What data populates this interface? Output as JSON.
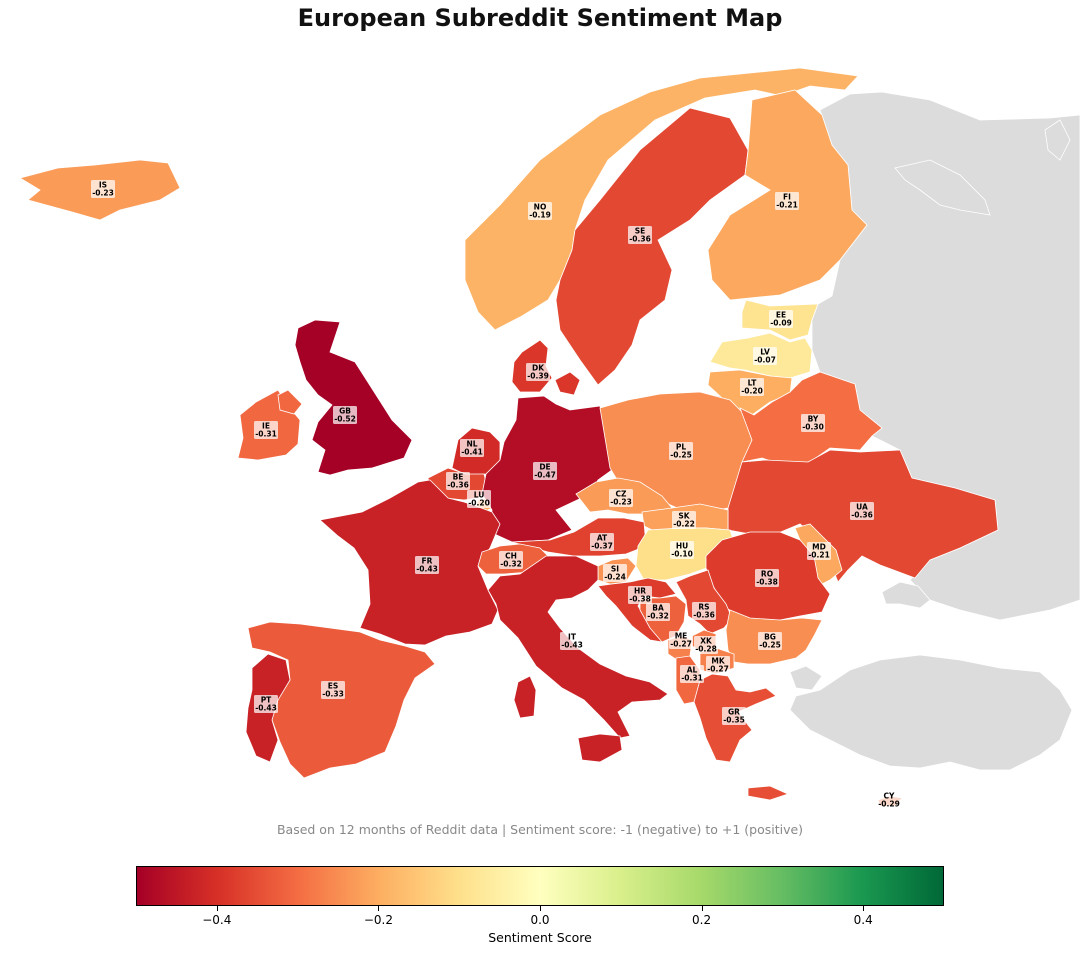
{
  "title": "European Subreddit Sentiment Map",
  "caption": "Based on 12 months of Reddit data | Sentiment score: -1 (negative) to +1 (positive)",
  "colorbar": {
    "label": "Sentiment Score",
    "range": [
      -0.5,
      0.5
    ],
    "colormap": "RdYlGn",
    "ticks": [
      {
        "value": -0.4,
        "label": "−0.4"
      },
      {
        "value": -0.2,
        "label": "−0.2"
      },
      {
        "value": 0.0,
        "label": "0.0"
      },
      {
        "value": 0.2,
        "label": "0.2"
      },
      {
        "value": 0.4,
        "label": "0.4"
      }
    ]
  },
  "colors": {
    "no_data": "#dcdcdc",
    "border": "#ffffff"
  },
  "countries": [
    {
      "code": "IS",
      "label": "-0.23",
      "value": -0.23
    },
    {
      "code": "NO",
      "label": "-0.19",
      "value": -0.19
    },
    {
      "code": "SE",
      "label": "-0.36",
      "value": -0.36
    },
    {
      "code": "FI",
      "label": "-0.21",
      "value": -0.21
    },
    {
      "code": "EE",
      "label": "-0.09",
      "value": -0.09
    },
    {
      "code": "LV",
      "label": "-0.07",
      "value": -0.07
    },
    {
      "code": "LT",
      "label": "-0.20",
      "value": -0.2
    },
    {
      "code": "DK",
      "label": "-0.39",
      "value": -0.39
    },
    {
      "code": "GB",
      "label": "-0.52",
      "value": -0.52
    },
    {
      "code": "IE",
      "label": "-0.31",
      "value": -0.31
    },
    {
      "code": "NL",
      "label": "-0.41",
      "value": -0.41
    },
    {
      "code": "BE",
      "label": "-0.36",
      "value": -0.36
    },
    {
      "code": "LU",
      "label": "-0.20",
      "value": -0.2
    },
    {
      "code": "DE",
      "label": "-0.47",
      "value": -0.47
    },
    {
      "code": "PL",
      "label": "-0.25",
      "value": -0.25
    },
    {
      "code": "BY",
      "label": "-0.30",
      "value": -0.3
    },
    {
      "code": "UA",
      "label": "-0.36",
      "value": -0.36
    },
    {
      "code": "CZ",
      "label": "-0.23",
      "value": -0.23
    },
    {
      "code": "SK",
      "label": "-0.22",
      "value": -0.22
    },
    {
      "code": "AT",
      "label": "-0.37",
      "value": -0.37
    },
    {
      "code": "HU",
      "label": "-0.10",
      "value": -0.1
    },
    {
      "code": "MD",
      "label": "-0.21",
      "value": -0.21
    },
    {
      "code": "RO",
      "label": "-0.38",
      "value": -0.38
    },
    {
      "code": "FR",
      "label": "-0.43",
      "value": -0.43
    },
    {
      "code": "CH",
      "label": "-0.32",
      "value": -0.32
    },
    {
      "code": "SI",
      "label": "-0.24",
      "value": -0.24
    },
    {
      "code": "HR",
      "label": "-0.38",
      "value": -0.38
    },
    {
      "code": "BA",
      "label": "-0.32",
      "value": -0.32
    },
    {
      "code": "RS",
      "label": "-0.36",
      "value": -0.36
    },
    {
      "code": "IT",
      "label": "-0.43",
      "value": -0.43
    },
    {
      "code": "ME",
      "label": "-0.27",
      "value": -0.27
    },
    {
      "code": "XK",
      "label": "-0.28",
      "value": -0.28
    },
    {
      "code": "BG",
      "label": "-0.25",
      "value": -0.25
    },
    {
      "code": "MK",
      "label": "-0.27",
      "value": -0.27
    },
    {
      "code": "AL",
      "label": "-0.31",
      "value": -0.31
    },
    {
      "code": "ES",
      "label": "-0.33",
      "value": -0.33
    },
    {
      "code": "PT",
      "label": "-0.43",
      "value": -0.43
    },
    {
      "code": "GR",
      "label": "-0.35",
      "value": -0.35
    },
    {
      "code": "CY",
      "label": "-0.29",
      "value": -0.29
    }
  ]
}
